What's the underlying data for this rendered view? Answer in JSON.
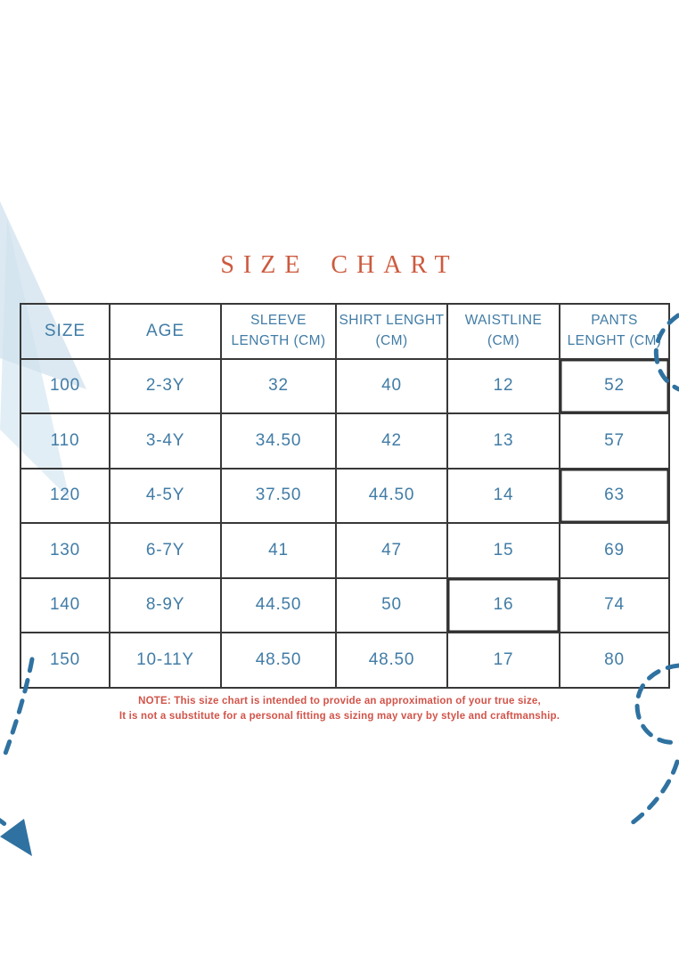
{
  "page": {
    "title": "SIZE CHART"
  },
  "table": {
    "columns": [
      "SIZE",
      "AGE",
      "SLEEVE\nLENGTH (CM)",
      "SHIRT LENGHT\n(CM)",
      "WAISTLINE\n(CM)",
      "PANTS\nLENGHT (CM)"
    ],
    "rows": [
      [
        "100",
        "2-3Y",
        "32",
        "40",
        "12",
        "52"
      ],
      [
        "110",
        "3-4Y",
        "34.50",
        "42",
        "13",
        "57"
      ],
      [
        "120",
        "4-5Y",
        "37.50",
        "44.50",
        "14",
        "63"
      ],
      [
        "130",
        "6-7Y",
        "41",
        "47",
        "15",
        "69"
      ],
      [
        "140",
        "8-9Y",
        "44.50",
        "50",
        "16",
        "74"
      ],
      [
        "150",
        "10-11Y",
        "48.50",
        "48.50",
        "17",
        "80"
      ]
    ]
  },
  "note": {
    "line1": "NOTE: This size chart is intended to provide an approximation of your true size,",
    "line2": "It is not a substitute for a personal fitting as sizing may vary by style and craftmanship."
  },
  "colors": {
    "table_text_blue": "#417ca6",
    "title_red": "#cd5a3e",
    "note_red": "#d2544a",
    "decoration_blue": "#2f72a1",
    "wedge_blue_light": "#dce9f2",
    "border_dark": "#383838"
  }
}
